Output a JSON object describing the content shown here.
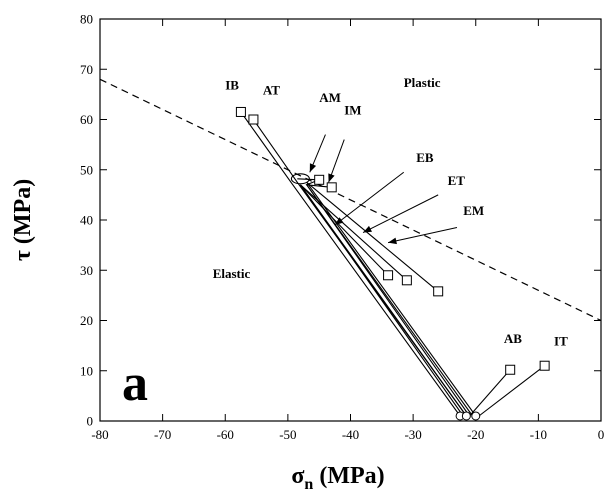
{
  "chart_data": {
    "type": "line",
    "panel_label": "a",
    "xlabel": "σ",
    "xlabel_sub": "n",
    "xlabel_unit": " (MPa)",
    "ylabel": "τ (MPa)",
    "xlim": [
      -80,
      0
    ],
    "ylim": [
      0,
      80
    ],
    "x_ticks": [
      -80,
      -70,
      -60,
      -50,
      -40,
      -30,
      -20,
      -10,
      0
    ],
    "y_ticks": [
      0,
      10,
      20,
      30,
      40,
      50,
      60,
      70,
      80
    ],
    "grid": false,
    "regions": [
      {
        "label": "Plastic",
        "x": -31.5,
        "y": 66.5
      },
      {
        "label": "Elastic",
        "x": -62,
        "y": 28.5
      }
    ],
    "failure_envelope": {
      "style": "dashed",
      "points": [
        [
          -80,
          68
        ],
        [
          0,
          20
        ]
      ]
    },
    "series": [
      {
        "name": "IB",
        "label_pos": [
          -60,
          66
        ],
        "points": [
          [
            -57.5,
            61.5
          ],
          [
            -49.5,
            47.5
          ],
          [
            -22.5,
            1
          ]
        ]
      },
      {
        "name": "AT",
        "label_pos": [
          -54,
          65
        ],
        "points": [
          [
            -55.5,
            60
          ],
          [
            -48.5,
            47.5
          ],
          [
            -21.5,
            1
          ]
        ]
      },
      {
        "name": "AM",
        "label_pos": [
          -45,
          63.5
        ],
        "points": [
          [
            -48.5,
            48.2
          ],
          [
            -45,
            48
          ],
          [
            -47,
            47
          ],
          [
            -21,
            1
          ]
        ]
      },
      {
        "name": "IM",
        "label_pos": [
          -41,
          61
        ],
        "points": [
          [
            -43,
            46.5
          ],
          [
            -47,
            47
          ],
          [
            -20.5,
            1
          ]
        ]
      },
      {
        "name": "EB",
        "label_pos": [
          -29.5,
          51.5
        ],
        "points": [
          [
            -34,
            29
          ],
          [
            -48,
            47
          ],
          [
            -22,
            1
          ]
        ]
      },
      {
        "name": "ET",
        "label_pos": [
          -24.5,
          47
        ],
        "points": [
          [
            -31,
            28
          ],
          [
            -48,
            47
          ],
          [
            -21.5,
            1
          ]
        ]
      },
      {
        "name": "EM",
        "label_pos": [
          -22,
          41
        ],
        "points": [
          [
            -26,
            25.8
          ],
          [
            -47,
            47.5
          ],
          [
            -20,
            1
          ]
        ]
      },
      {
        "name": "AB",
        "label_pos": [
          -15.5,
          15.5
        ],
        "points": [
          [
            -14.5,
            10.2
          ],
          [
            -21,
            1
          ]
        ]
      },
      {
        "name": "IT",
        "label_pos": [
          -7.5,
          15
        ],
        "points": [
          [
            -9,
            11
          ],
          [
            -19.5,
            1
          ]
        ]
      }
    ],
    "arrows": [
      {
        "from": [
          -44,
          57
        ],
        "to": [
          -46.5,
          49.5
        ]
      },
      {
        "from": [
          -41,
          56
        ],
        "to": [
          -43.5,
          47.5
        ]
      },
      {
        "from": [
          -31.5,
          49.5
        ],
        "to": [
          -42.5,
          39
        ]
      },
      {
        "from": [
          -26,
          45
        ],
        "to": [
          -38,
          37.5
        ]
      },
      {
        "from": [
          -23,
          38.5
        ],
        "to": [
          -34,
          35.5
        ]
      }
    ],
    "square_markers": [
      [
        -57.5,
        61.5
      ],
      [
        -55.5,
        60
      ],
      [
        -45,
        48
      ],
      [
        -43,
        46.5
      ],
      [
        -34,
        29
      ],
      [
        -31,
        28
      ],
      [
        -26,
        25.8
      ],
      [
        -14.5,
        10.2
      ],
      [
        -9,
        11
      ]
    ],
    "circle_markers": [
      [
        -22.5,
        1
      ],
      [
        -21.5,
        1
      ],
      [
        -20,
        1
      ]
    ]
  }
}
